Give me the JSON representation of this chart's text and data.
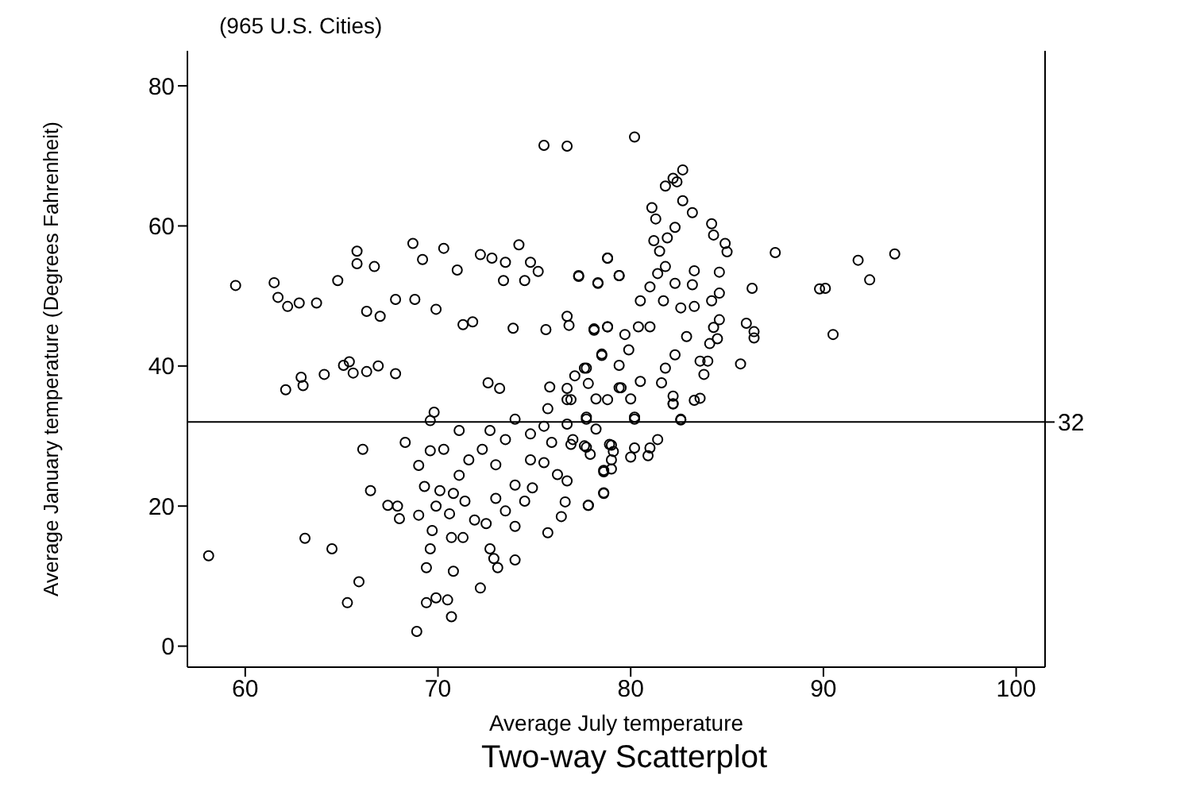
{
  "chart_data": {
    "type": "scatter",
    "title": "Two-way Scatterplot",
    "subtitle": "(965 U.S. Cities)",
    "xlabel": "Average July temperature",
    "ylabel": "Average January temperature (Degrees Fahrenheit)",
    "xlim": [
      57,
      101.5
    ],
    "xticks": [
      60,
      70,
      80,
      90,
      100
    ],
    "ylim": [
      -3,
      85
    ],
    "yticks": [
      0,
      20,
      40,
      60,
      80
    ],
    "grid": false,
    "legend": false,
    "marker": "circle",
    "ref_lines": [
      {
        "axis": "y",
        "value": 32,
        "label": "32",
        "color": "#000000"
      }
    ],
    "series": [
      {
        "color": "#000000",
        "x": [
          59.5,
          75.5,
          76.7,
          61.5,
          61.7,
          62.2,
          62.8,
          63.7,
          65.8,
          65.8,
          64.8,
          66.3,
          66.7,
          67.0,
          67.8,
          68.8,
          68.7,
          69.2,
          69.9,
          70.3,
          71.0,
          71.3,
          71.8,
          72.2,
          72.8,
          73.5,
          73.4,
          74.2,
          74.8,
          74.5,
          75.2,
          73.9,
          75.6,
          76.7,
          76.8,
          77.3,
          78.3,
          78.8,
          79.4,
          62.1,
          63.0,
          62.9,
          64.1,
          65.1,
          65.4,
          65.6,
          66.3,
          66.9,
          67.8,
          69.8,
          69.6,
          72.6,
          73.2,
          75.8,
          76.7,
          76.9,
          77.7,
          78.5,
          78.1,
          78.8,
          79.5,
          77.8,
          78.8,
          80.2,
          81.8,
          82.2,
          82.7,
          82.4,
          82.7,
          83.2,
          81.1,
          81.3,
          82.3,
          81.2,
          81.9,
          81.5,
          84.2,
          84.3,
          84.9,
          85.0,
          87.5,
          91.8,
          93.7,
          92.4,
          90.1,
          89.8,
          86.3,
          86.4,
          86.4,
          90.5,
          86.0,
          85.7,
          84.6,
          83.3,
          83.2,
          82.3,
          81.8,
          81.4,
          81.0,
          80.5,
          81.7,
          82.6,
          83.3,
          84.2,
          84.6,
          84.6,
          84.3,
          84.5,
          84.1,
          83.6,
          84.0,
          83.8,
          83.3,
          82.6,
          82.2,
          82.2,
          81.6,
          81.8,
          82.3,
          82.9,
          81.0,
          80.4,
          79.7,
          78.8,
          78.1,
          78.8,
          77.3,
          78.3,
          79.4,
          79.9,
          78.5,
          79.4,
          77.6,
          77.1,
          76.7,
          78.2,
          79.4,
          80.0,
          80.5,
          80.2,
          77.7,
          58.1,
          63.1,
          64.5,
          65.9,
          65.3,
          66.5,
          66.1,
          68.3,
          67.4,
          67.9,
          68.0,
          68.9,
          69.4,
          69.9,
          70.5,
          70.7,
          69.6,
          69.4,
          70.8,
          72.2,
          73.1,
          74.0,
          72.9,
          72.7,
          71.3,
          70.7,
          69.7,
          69.0,
          69.9,
          69.6,
          70.3,
          71.1,
          69.0,
          69.3,
          70.1,
          70.6,
          71.4,
          71.9,
          72.5,
          73.0,
          73.5,
          74.0,
          74.5,
          74.9,
          75.7,
          76.4,
          76.6,
          77.8,
          78.6,
          76.2,
          76.7,
          75.5,
          74.8,
          74.0,
          73.5,
          72.7,
          71.6,
          71.1,
          70.8,
          72.3,
          73.0,
          74.8,
          75.5,
          75.9,
          76.9,
          77.7,
          78.6,
          78.9,
          79.0,
          75.7,
          76.7,
          77.7,
          74.0,
          77.8,
          78.6,
          78.6,
          79.0,
          80.0,
          80.9,
          81.0,
          81.4,
          80.2,
          79.1,
          79.0,
          77.6,
          77.9,
          82.6,
          80.2,
          82.2,
          83.6,
          77.0,
          78.2
        ],
        "values": [
          51.5,
          71.5,
          71.4,
          51.9,
          49.8,
          48.5,
          49.0,
          49.0,
          56.4,
          54.6,
          52.2,
          47.8,
          54.2,
          47.1,
          49.5,
          49.5,
          57.5,
          55.2,
          48.1,
          56.8,
          53.7,
          45.9,
          46.3,
          55.9,
          55.4,
          54.8,
          52.2,
          57.3,
          54.8,
          52.2,
          53.5,
          45.4,
          45.2,
          47.1,
          45.8,
          52.8,
          51.9,
          55.4,
          52.9,
          36.6,
          37.2,
          38.4,
          38.8,
          40.1,
          40.6,
          39.0,
          39.2,
          40.0,
          38.9,
          33.4,
          32.2,
          37.6,
          36.8,
          37.0,
          36.8,
          35.2,
          39.7,
          41.5,
          45.1,
          45.6,
          36.9,
          37.5,
          35.2,
          72.7,
          65.7,
          66.8,
          68.0,
          66.3,
          63.6,
          61.9,
          62.6,
          61.0,
          59.8,
          57.9,
          58.3,
          56.4,
          60.3,
          58.7,
          57.5,
          56.3,
          56.2,
          55.1,
          56.0,
          52.3,
          51.1,
          51.0,
          51.1,
          44.9,
          44.0,
          44.5,
          46.1,
          40.3,
          53.4,
          53.6,
          51.6,
          51.8,
          54.2,
          53.2,
          51.3,
          49.3,
          49.3,
          48.3,
          48.5,
          49.3,
          50.4,
          46.6,
          45.5,
          43.9,
          43.2,
          40.7,
          40.7,
          38.8,
          35.1,
          32.4,
          35.7,
          34.6,
          37.6,
          39.7,
          41.6,
          44.2,
          45.6,
          45.6,
          44.5,
          45.6,
          45.3,
          55.4,
          52.9,
          51.8,
          52.9,
          42.3,
          41.7,
          40.1,
          39.7,
          38.6,
          35.2,
          35.3,
          36.9,
          35.3,
          37.8,
          32.7,
          32.7,
          12.9,
          15.4,
          13.9,
          9.2,
          6.2,
          22.2,
          28.1,
          29.1,
          20.1,
          20.0,
          18.2,
          2.1,
          6.2,
          6.9,
          6.6,
          4.2,
          13.9,
          11.2,
          10.7,
          8.3,
          11.2,
          12.3,
          12.5,
          13.9,
          15.5,
          15.5,
          16.5,
          18.7,
          20.0,
          27.9,
          28.1,
          30.8,
          25.8,
          22.8,
          22.2,
          18.9,
          20.7,
          18.0,
          17.5,
          21.1,
          19.3,
          17.1,
          20.7,
          22.6,
          16.2,
          18.5,
          20.6,
          20.1,
          21.9,
          24.5,
          23.6,
          26.2,
          26.6,
          23.0,
          29.5,
          30.8,
          26.6,
          24.4,
          21.8,
          28.1,
          25.9,
          30.3,
          31.4,
          29.1,
          28.8,
          28.4,
          25.1,
          28.8,
          26.6,
          33.9,
          31.7,
          32.4,
          32.4,
          20.1,
          21.8,
          24.9,
          25.3,
          27.0,
          27.2,
          28.3,
          29.5,
          28.3,
          27.8,
          28.7,
          28.6,
          27.4,
          32.3,
          32.4,
          34.6,
          35.4,
          29.5,
          31.0
        ]
      }
    ]
  }
}
